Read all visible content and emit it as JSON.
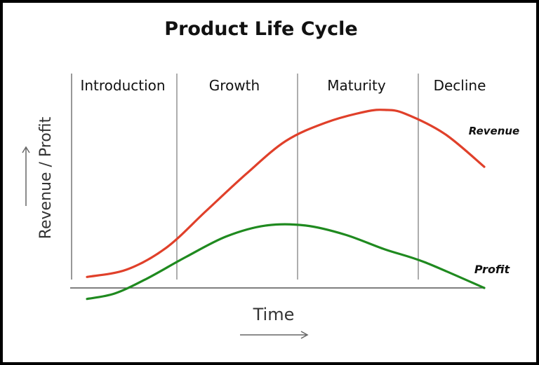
{
  "chart_data": {
    "type": "line",
    "title": "Product Life Cycle",
    "xlabel": "Time",
    "ylabel": "Revenue / Profit",
    "phases": [
      "Introduction",
      "Growth",
      "Maturity",
      "Decline"
    ],
    "series": [
      {
        "name": "Revenue",
        "color": "#e0402a",
        "x": [
          0.0,
          0.1,
          0.2,
          0.3,
          0.4,
          0.5,
          0.6,
          0.7,
          0.75,
          0.8,
          0.9,
          1.0
        ],
        "values": [
          0.06,
          0.1,
          0.22,
          0.42,
          0.62,
          0.8,
          0.9,
          0.96,
          0.97,
          0.95,
          0.84,
          0.66
        ]
      },
      {
        "name": "Profit",
        "color": "#1f8a1f",
        "x": [
          0.0,
          0.07,
          0.15,
          0.25,
          0.35,
          0.45,
          0.55,
          0.65,
          0.75,
          0.85,
          1.0
        ],
        "values": [
          -0.06,
          -0.03,
          0.05,
          0.17,
          0.28,
          0.34,
          0.34,
          0.29,
          0.21,
          0.14,
          0.0
        ]
      }
    ],
    "colors": {
      "axis": "#555555",
      "divider": "#777777",
      "text": "#111111",
      "arrow": "#666666"
    },
    "grid": false,
    "legend": "inline labels at curve ends"
  }
}
